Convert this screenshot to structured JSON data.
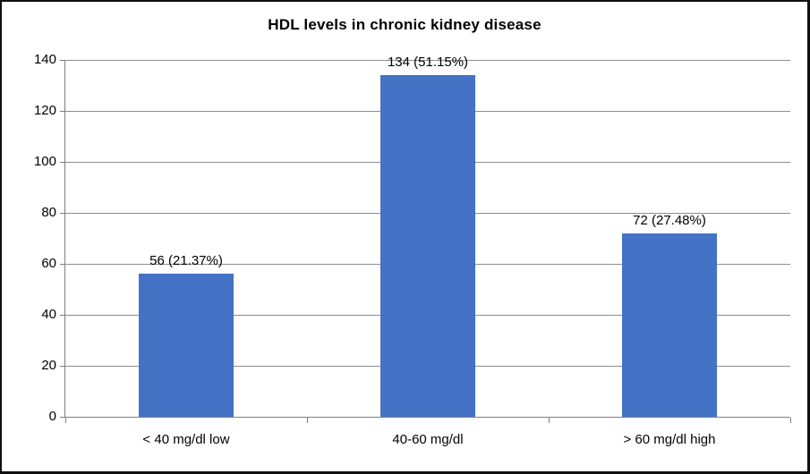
{
  "title": "HDL levels in chronic kidney disease",
  "colors": {
    "bar": "#4472c4",
    "gridline": "#8e8e8e",
    "axis": "#7f7f7f",
    "text": "#000000",
    "frame_border": "#111111",
    "background": "#ffffff"
  },
  "chart_data": {
    "type": "bar",
    "title": "HDL levels in chronic kidney disease",
    "categories": [
      "< 40 mg/dl low",
      "40-60 mg/dl",
      "> 60 mg/dl high"
    ],
    "values": [
      56,
      134,
      72
    ],
    "data_labels": [
      "56 (21.37%)",
      "134 (51.15%)",
      "72 (27.48%)"
    ],
    "xlabel": "",
    "ylabel": "",
    "ylim": [
      0,
      140
    ],
    "yticks": [
      0,
      20,
      40,
      60,
      80,
      100,
      120,
      140
    ],
    "grid": true,
    "legend": false
  }
}
